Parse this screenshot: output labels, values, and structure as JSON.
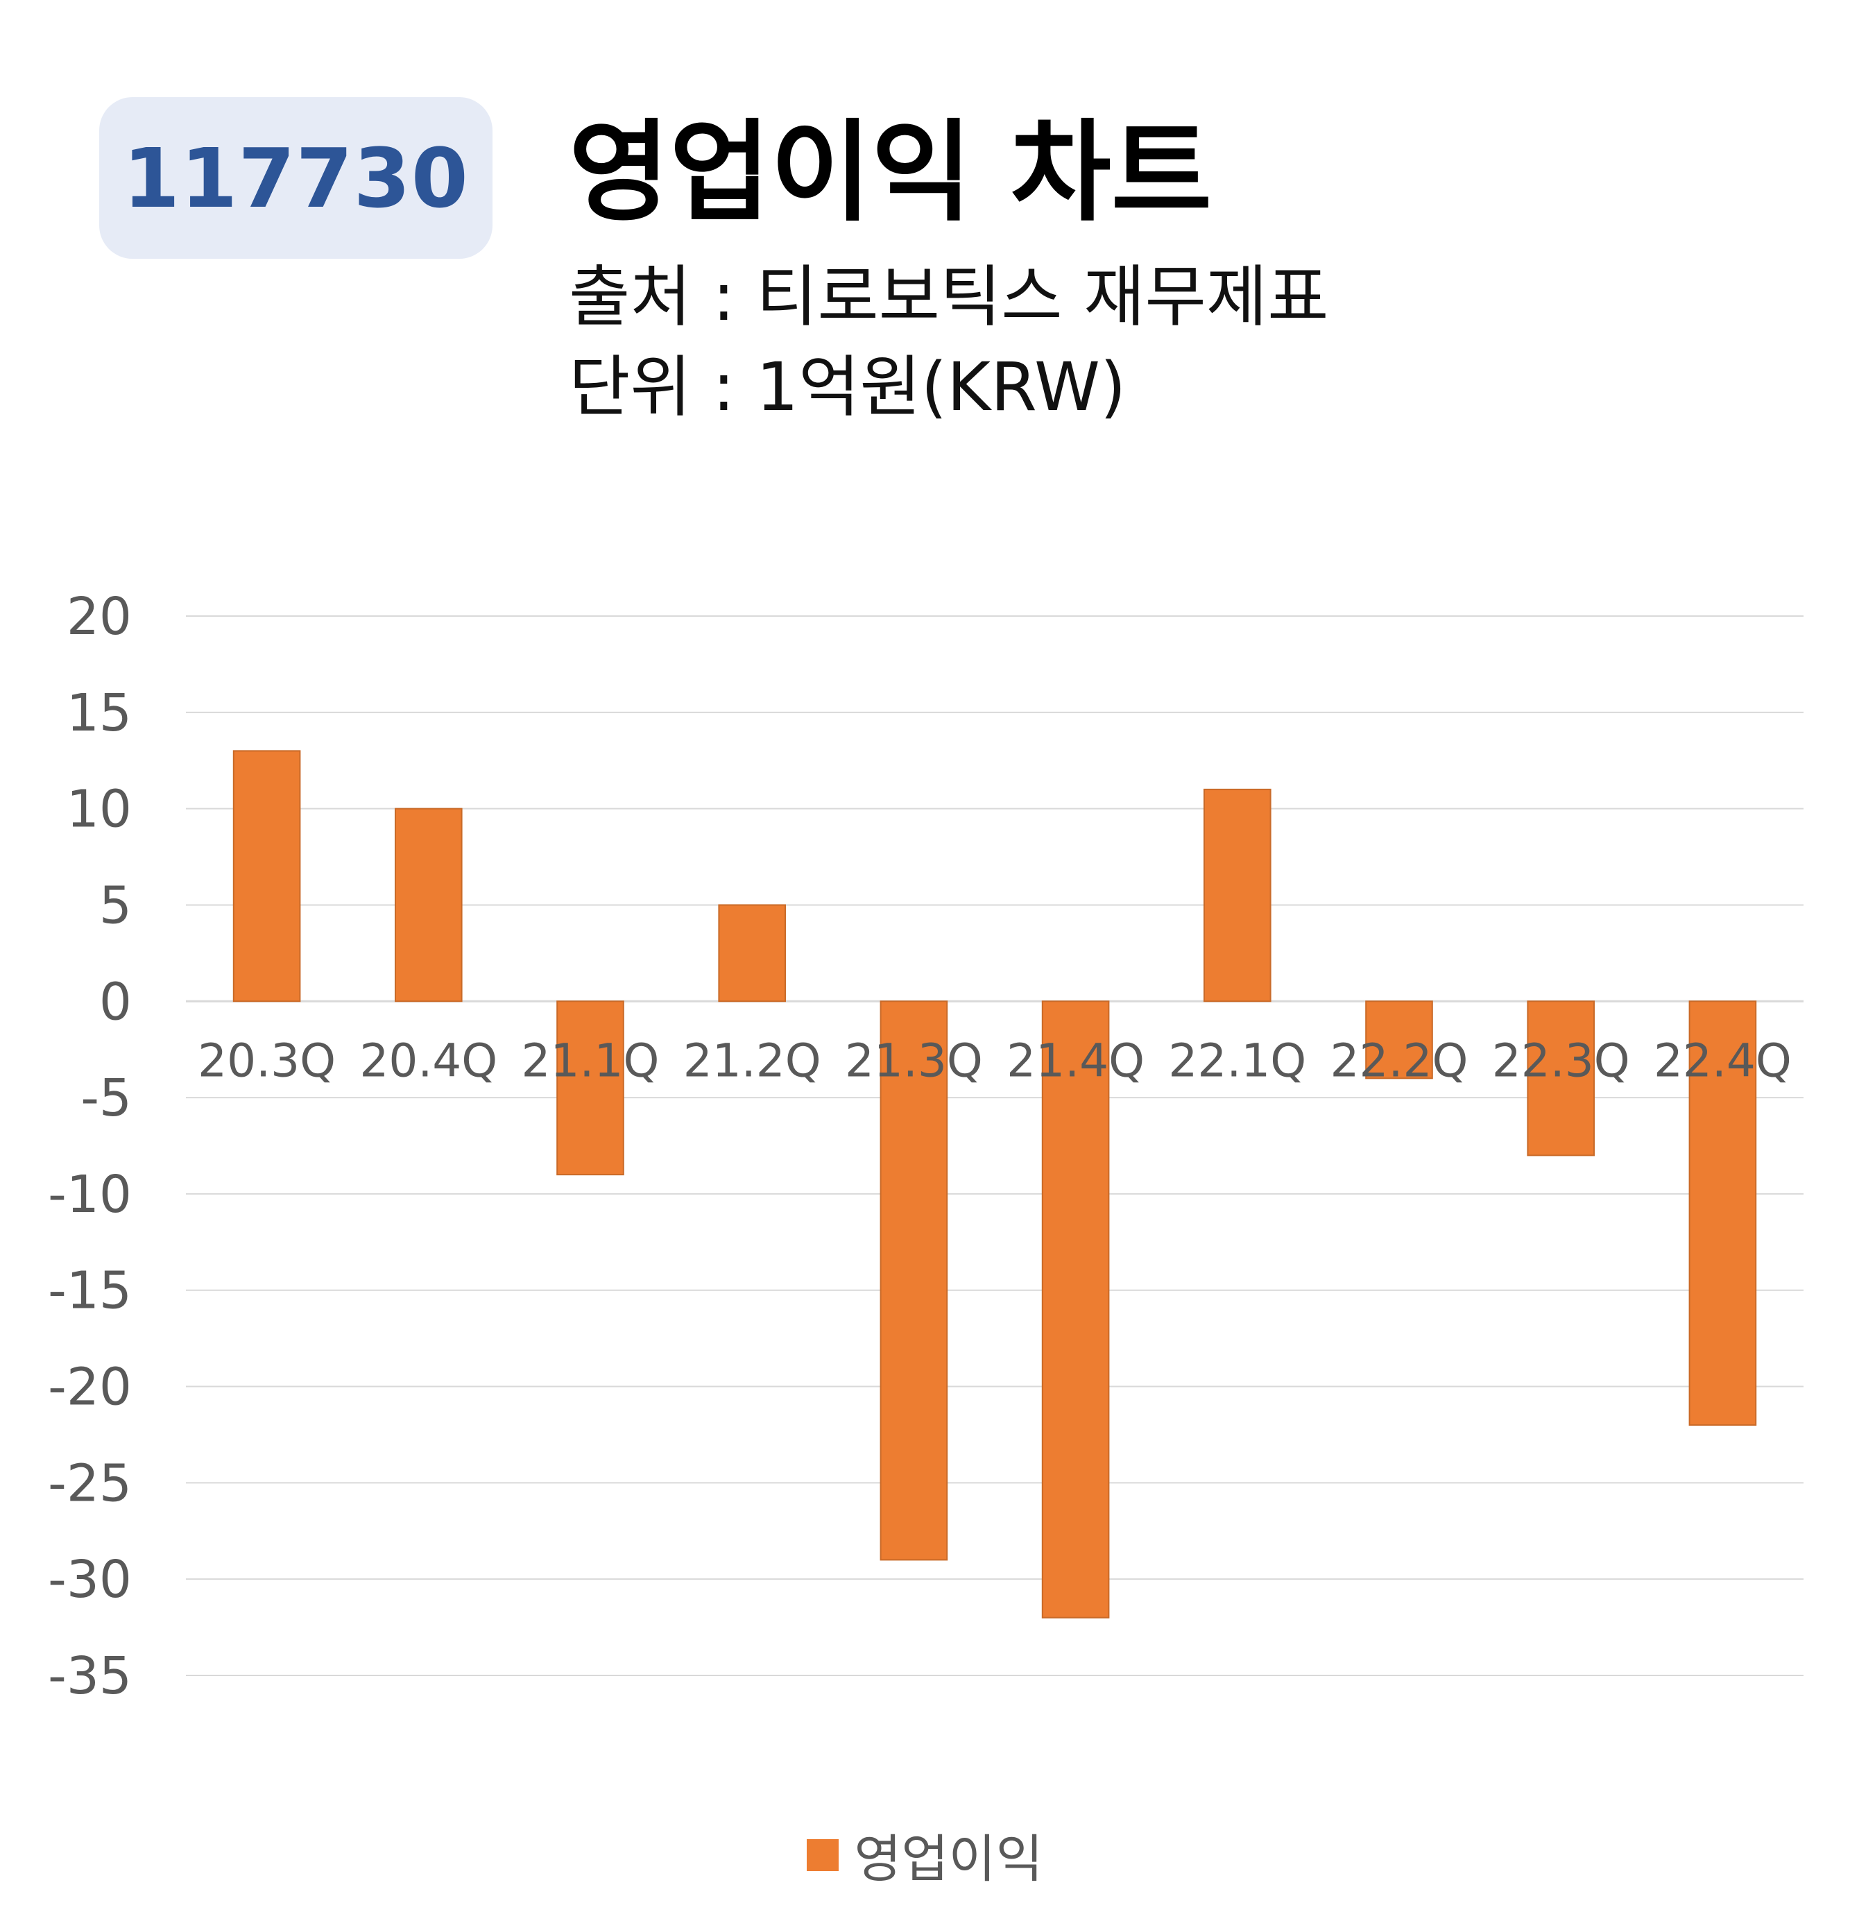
{
  "badge": {
    "code": "117730"
  },
  "header": {
    "title": "영업이익 차트",
    "source": "출처 : 티로보틱스 재무제표",
    "unit": "단위 : 1억원(KRW)"
  },
  "colors": {
    "bar": "#ed7d31",
    "grid": "#d9d9d9",
    "tick": "#595959",
    "badge_bg": "#e6ebf6",
    "badge_text": "#2d5597"
  },
  "chart_data": {
    "type": "bar",
    "categories": [
      "20.3Q",
      "20.4Q",
      "21.1Q",
      "21.2Q",
      "21.3Q",
      "21.4Q",
      "22.1Q",
      "22.2Q",
      "22.3Q",
      "22.4Q"
    ],
    "series": [
      {
        "name": "영업이익",
        "values": [
          13,
          10,
          -9,
          5,
          -29,
          -32,
          11,
          -4,
          -8,
          -22
        ]
      }
    ],
    "ylim": [
      -35,
      20
    ],
    "yticks": [
      20,
      15,
      10,
      5,
      0,
      -5,
      -10,
      -15,
      -20,
      -25,
      -30,
      -35
    ],
    "grid": true,
    "legend": "bottom"
  }
}
